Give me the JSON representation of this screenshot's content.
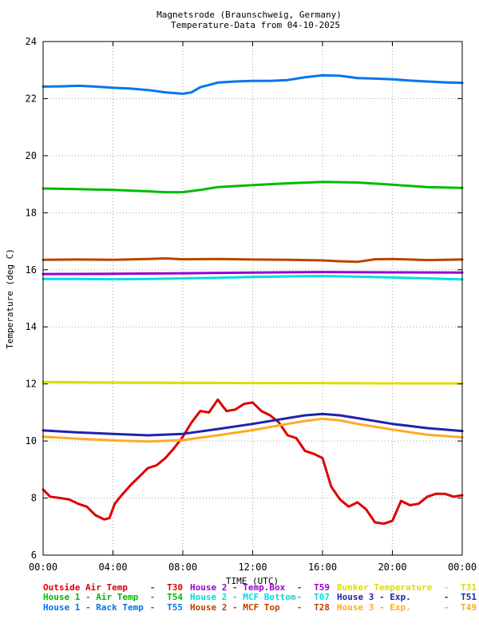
{
  "chart_data": {
    "type": "line",
    "title": "Magnetsrode (Braunschweig, Germany)",
    "subtitle": "Temperature-Data from 04-10-2025",
    "xlabel": "TIME (UTC)",
    "ylabel": "Temperature (deg C)",
    "xlim": [
      0,
      24
    ],
    "ylim": [
      6,
      24
    ],
    "x_ticks": [
      {
        "value": 0,
        "label": "00:00"
      },
      {
        "value": 4,
        "label": "04:00"
      },
      {
        "value": 8,
        "label": "08:00"
      },
      {
        "value": 12,
        "label": "12:00"
      },
      {
        "value": 16,
        "label": "16:00"
      },
      {
        "value": 20,
        "label": "20:00"
      },
      {
        "value": 24,
        "label": "00:00"
      }
    ],
    "y_ticks": [
      6,
      8,
      10,
      12,
      14,
      16,
      18,
      20,
      22,
      24
    ],
    "grid": true,
    "legend_position": "bottom",
    "series": [
      {
        "name": "Outside Air Temp",
        "code": "T30",
        "color": "#dd0000",
        "x": [
          0,
          0.4,
          1,
          1.5,
          2,
          2.5,
          3,
          3.5,
          3.8,
          4.1,
          4.5,
          5,
          5.5,
          6,
          6.5,
          7,
          7.5,
          8,
          8.5,
          9,
          9.5,
          10,
          10.5,
          11,
          11.5,
          12,
          12.5,
          13,
          13.5,
          14,
          14.5,
          15,
          15.5,
          16,
          16.5,
          17,
          17.5,
          18,
          18.5,
          19,
          19.5,
          20,
          20.5,
          21,
          21.5,
          22,
          22.5,
          23,
          23.5,
          24
        ],
        "y": [
          8.3,
          8.05,
          8.0,
          7.95,
          7.8,
          7.7,
          7.4,
          7.25,
          7.3,
          7.8,
          8.1,
          8.45,
          8.75,
          9.05,
          9.15,
          9.4,
          9.75,
          10.15,
          10.65,
          11.05,
          11.0,
          11.45,
          11.05,
          11.1,
          11.3,
          11.35,
          11.05,
          10.9,
          10.65,
          10.2,
          10.1,
          9.65,
          9.55,
          9.4,
          8.4,
          7.95,
          7.7,
          7.85,
          7.6,
          7.15,
          7.1,
          7.2,
          7.9,
          7.75,
          7.8,
          8.05,
          8.15,
          8.15,
          8.05,
          8.1
        ]
      },
      {
        "name": "House 1 - Air  Temp",
        "code": "T54",
        "color": "#00bb00",
        "x": [
          0,
          2,
          4,
          6,
          7,
          8,
          9,
          10,
          12,
          14,
          16,
          18,
          20,
          22,
          24
        ],
        "y": [
          18.85,
          18.83,
          18.8,
          18.75,
          18.72,
          18.72,
          18.8,
          18.9,
          18.97,
          19.03,
          19.08,
          19.06,
          18.98,
          18.9,
          18.87
        ]
      },
      {
        "name": "House 1 - Rack Temp",
        "code": "T55",
        "color": "#0077ee",
        "x": [
          0,
          1,
          2,
          3,
          4,
          5,
          6,
          7,
          8,
          8.5,
          9,
          10,
          11,
          12,
          13,
          14,
          15,
          16,
          17,
          18,
          19,
          20,
          21,
          22,
          23,
          24
        ],
        "y": [
          22.42,
          22.43,
          22.45,
          22.42,
          22.38,
          22.35,
          22.3,
          22.22,
          22.17,
          22.22,
          22.4,
          22.56,
          22.6,
          22.62,
          22.62,
          22.65,
          22.75,
          22.82,
          22.8,
          22.72,
          22.7,
          22.68,
          22.63,
          22.6,
          22.57,
          22.55
        ]
      },
      {
        "name": "House 2 - Temp.Box",
        "code": "T59",
        "color": "#9900cc",
        "x": [
          0,
          4,
          8,
          12,
          16,
          20,
          24
        ],
        "y": [
          15.85,
          15.86,
          15.88,
          15.9,
          15.92,
          15.91,
          15.9
        ]
      },
      {
        "name": "House 2 - MCF Bottom",
        "code": "T07",
        "color": "#00dddd",
        "x": [
          0,
          2,
          4,
          6,
          8,
          10,
          12,
          14,
          16,
          18,
          20,
          22,
          24
        ],
        "y": [
          15.68,
          15.68,
          15.67,
          15.68,
          15.7,
          15.72,
          15.75,
          15.77,
          15.78,
          15.76,
          15.73,
          15.7,
          15.66
        ]
      },
      {
        "name": "House 2 - MCF Top",
        "code": "T28",
        "color": "#bb4400",
        "x": [
          0,
          2,
          4,
          6,
          7,
          8,
          10,
          12,
          14,
          16,
          17,
          18,
          19,
          20,
          22,
          24
        ],
        "y": [
          16.35,
          16.36,
          16.35,
          16.38,
          16.4,
          16.37,
          16.38,
          16.36,
          16.35,
          16.33,
          16.3,
          16.28,
          16.37,
          16.38,
          16.34,
          16.36
        ]
      },
      {
        "name": "Bunker Temperature",
        "code": "T31",
        "color": "#dddd00",
        "x": [
          0,
          4,
          8,
          12,
          16,
          20,
          24
        ],
        "y": [
          12.07,
          12.05,
          12.04,
          12.03,
          12.03,
          12.02,
          12.02
        ]
      },
      {
        "name": "House 3 - Exp.",
        "code": "T51",
        "color": "#2222aa",
        "x": [
          0,
          2,
          4,
          6,
          8,
          10,
          12,
          14,
          15,
          16,
          17,
          18,
          20,
          22,
          24
        ],
        "y": [
          10.37,
          10.3,
          10.25,
          10.2,
          10.25,
          10.42,
          10.6,
          10.8,
          10.9,
          10.95,
          10.9,
          10.8,
          10.6,
          10.45,
          10.35
        ]
      },
      {
        "name": "House 3 - Exp.",
        "code": "T49",
        "color": "#ffaa22",
        "x": [
          0,
          2,
          4,
          6,
          8,
          10,
          12,
          14,
          15,
          16,
          17,
          18,
          20,
          22,
          24
        ],
        "y": [
          10.15,
          10.08,
          10.02,
          9.98,
          10.03,
          10.2,
          10.38,
          10.6,
          10.7,
          10.78,
          10.72,
          10.6,
          10.4,
          10.22,
          10.13
        ]
      }
    ]
  }
}
